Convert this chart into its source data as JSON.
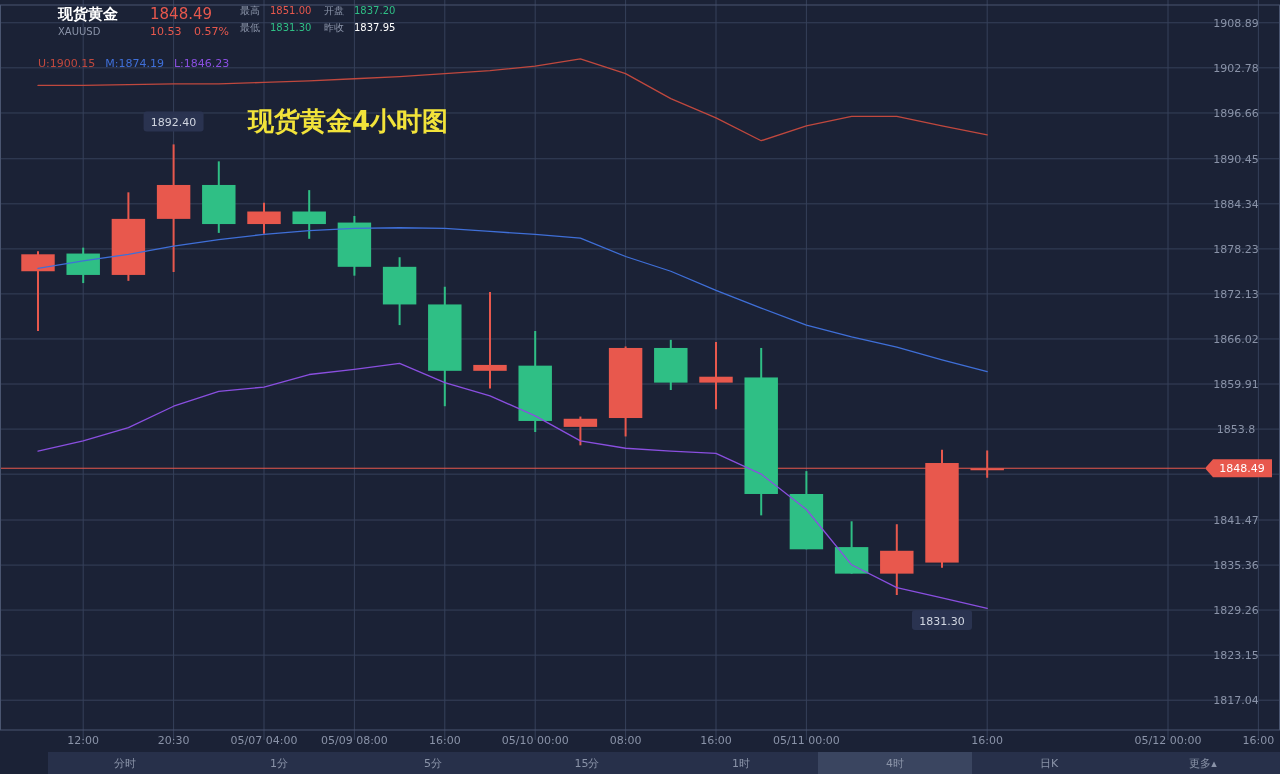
{
  "chart_data": {
    "type": "candlestick",
    "title": "现货黄金4小时图",
    "categories": [
      null,
      "12:00",
      null,
      "20:30",
      null,
      "05/07 04:00",
      null,
      "05/09 08:00",
      null,
      "16:00",
      null,
      "05/10 00:00",
      null,
      "08:00",
      null,
      "16:00",
      null,
      "05/11 00:00",
      null,
      null,
      null,
      "16:00",
      null,
      null,
      null,
      "05/12 00:00",
      null,
      "16:00"
    ],
    "ohlc": [
      [
        1875.2,
        1877.9,
        1867.1,
        1877.5
      ],
      [
        1877.6,
        1878.4,
        1873.6,
        1874.7
      ],
      [
        1874.7,
        1885.9,
        1873.9,
        1882.3
      ],
      [
        1882.3,
        1892.4,
        1875.1,
        1886.9
      ],
      [
        1886.9,
        1890.1,
        1880.4,
        1881.6
      ],
      [
        1881.6,
        1884.5,
        1880.3,
        1883.3
      ],
      [
        1883.3,
        1886.2,
        1879.6,
        1881.6
      ],
      [
        1881.8,
        1882.7,
        1874.6,
        1875.8
      ],
      [
        1875.8,
        1877.1,
        1867.9,
        1870.7
      ],
      [
        1870.7,
        1873.1,
        1856.9,
        1861.7
      ],
      [
        1861.7,
        1872.4,
        1859.3,
        1862.5
      ],
      [
        1862.4,
        1867.1,
        1853.4,
        1854.9
      ],
      [
        1854.1,
        1855.5,
        1851.6,
        1855.2
      ],
      [
        1855.3,
        1865.0,
        1852.8,
        1864.8
      ],
      [
        1864.8,
        1865.9,
        1859.1,
        1860.1
      ],
      [
        1860.1,
        1865.6,
        1856.5,
        1860.9
      ],
      [
        1860.8,
        1864.8,
        1842.1,
        1845.0
      ],
      [
        1845.0,
        1848.1,
        1837.5,
        1837.5
      ],
      [
        1837.8,
        1841.3,
        1834.2,
        1834.2
      ],
      [
        1834.2,
        1840.9,
        1831.3,
        1837.3
      ],
      [
        1835.7,
        1851.0,
        1835.0,
        1849.2
      ],
      [
        1848.4,
        1850.9,
        1847.2,
        1848.49
      ],
      null,
      null,
      null,
      null,
      null,
      null
    ],
    "colors": [
      "#e8584d",
      "#2fbf85",
      "#e8584d",
      "#e8584d",
      "#2fbf85",
      "#e8584d",
      "#2fbf85",
      "#2fbf85",
      "#2fbf85",
      "#2fbf85",
      "#e8584d",
      "#2fbf85",
      "#e8584d",
      "#e8584d",
      "#2fbf85",
      "#e8584d",
      "#2fbf85",
      "#2fbf85",
      "#2fbf85",
      "#e8584d",
      "#e8584d",
      "#e8584d",
      null,
      null,
      null,
      null,
      null,
      null
    ],
    "series": [
      {
        "name": "U:1900.15",
        "type": "line",
        "color": "#c0483e",
        "values": [
          1900.4,
          1900.4,
          1900.5,
          1900.6,
          1900.6,
          1900.8,
          1901.0,
          1901.3,
          1901.6,
          1902.0,
          1902.4,
          1903.0,
          1904.0,
          1902.0,
          1898.6,
          1896.0,
          1892.9,
          1894.9,
          1896.2,
          1896.2,
          1894.9,
          1893.7,
          null,
          null,
          null,
          null,
          null,
          null
        ]
      },
      {
        "name": "M:1874.19",
        "type": "line",
        "color": "#3f6fd8",
        "values": [
          1875.6,
          1876.6,
          1877.5,
          1878.6,
          1879.5,
          1880.2,
          1880.7,
          1881.0,
          1881.1,
          1881.0,
          1880.6,
          1880.2,
          1879.7,
          1877.2,
          1875.2,
          1872.6,
          1870.2,
          1867.9,
          1866.3,
          1864.9,
          1863.2,
          1861.6,
          null,
          null,
          null,
          null,
          null,
          null
        ]
      },
      {
        "name": "L:1846.23",
        "type": "line",
        "color": "#8a4fe0",
        "values": [
          1850.8,
          1852.2,
          1854.0,
          1856.9,
          1858.9,
          1859.5,
          1861.2,
          1861.9,
          1862.7,
          1860.1,
          1858.3,
          1855.6,
          1852.2,
          1851.2,
          1850.8,
          1850.5,
          1847.7,
          1842.9,
          1835.4,
          1832.3,
          1830.9,
          1829.5,
          null,
          null,
          null,
          null,
          null,
          null
        ]
      }
    ],
    "ylim": [
      1813.0,
      1911.3
    ],
    "yticks": [
      1908.89,
      1902.78,
      1896.66,
      1890.45,
      1884.34,
      1878.23,
      1872.13,
      1866.02,
      1859.91,
      1853.8,
      {
        "value": 1847.69,
        "label": null
      },
      1841.47,
      1835.36,
      1829.26,
      1823.15,
      1817.04
    ],
    "ref_lines": [
      {
        "axis": "y",
        "value": 1848.49,
        "label": "1848.49",
        "color": "#e8584d"
      }
    ],
    "grid": true,
    "legend": "top left",
    "annotations": [
      "现货黄金",
      "XAUUSD",
      "1848.49",
      "10.53",
      "0.57%",
      "最高",
      "1851.00",
      "最低",
      "1831.30",
      "开盘",
      "1837.20",
      "昨收",
      "1837.95",
      {
        "text": "1892.40",
        "y": 1892.4
      },
      {
        "text": "1831.30",
        "y": 1831.3
      },
      "分时",
      "1分",
      "5分",
      "15分",
      "1时",
      "4时",
      "日K",
      "更多▴"
    ]
  }
}
